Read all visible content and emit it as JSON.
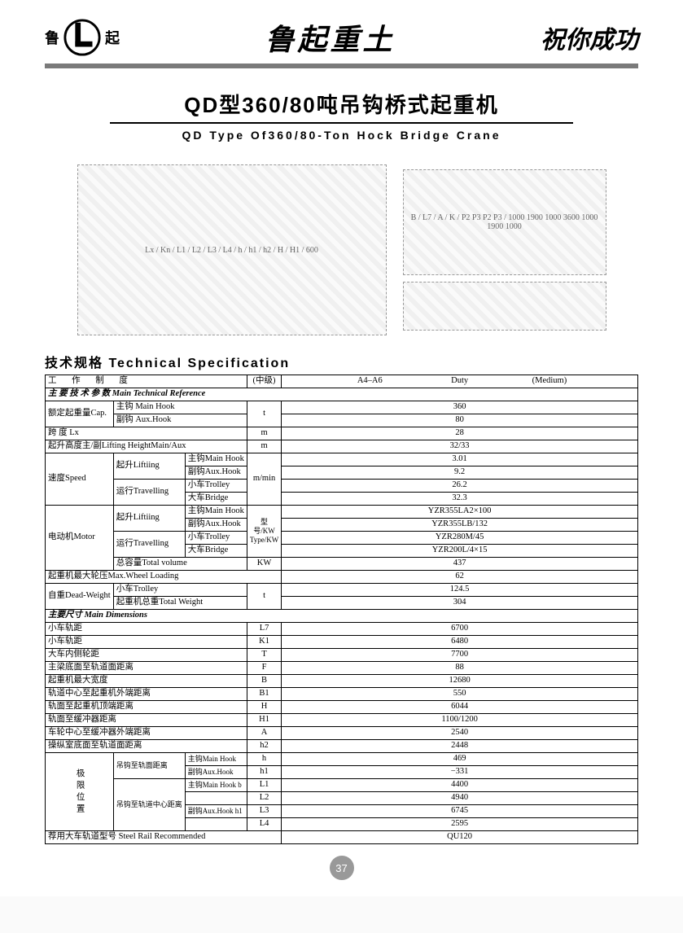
{
  "header": {
    "logo_left_char": "鲁",
    "logo_right_char": "起",
    "brand": "鲁起重土",
    "wish": "祝你成功"
  },
  "title": {
    "cn": "QD型360/80吨吊钩桥式起重机",
    "en": "QD Type Of360/80-Ton Hock Bridge Crane"
  },
  "section_heading": "技术规格  Technical  Specification",
  "diagram_labels": {
    "left": "Lx / Kn / L1 / L2 / L3 / L4 / h / h1 / h2 / H / H1 / 600",
    "right": "B / L7 / A / K / P2 P3 P2 P3 / 1000 1900 1000 3600 1000 1900 1000"
  },
  "table": {
    "duty": {
      "label_cn": "工  作  制  度",
      "label_mid": "(中级)",
      "code": "A4–A6",
      "label_en": "Duty",
      "value": "(Medium)"
    },
    "sub1": "主 要 技 术 参 数   Main   Technical   Reference",
    "cap": {
      "label": "额定起重量Cap.",
      "main_label": "主钩 Main Hook",
      "aux_label": "副钩 Aux.Hook",
      "unit": "t",
      "main_val": "360",
      "aux_val": "80"
    },
    "span": {
      "label": "跨  度    Lx",
      "unit": "m",
      "val": "28"
    },
    "lift_h": {
      "label": "起升高度主/副Lifting HeightMain/Aux",
      "unit": "m",
      "val": "32/33"
    },
    "speed": {
      "group_label": "速度Speed",
      "lift_label": "起升Liftiing",
      "trav_label": "运行Travelling",
      "unit": "m/min",
      "main_hook": {
        "label": "主钩Main Hook",
        "val": "3.01"
      },
      "aux_hook": {
        "label": "副钩Aux.Hook",
        "val": "9.2"
      },
      "trolley": {
        "label": "小车Trolley",
        "val": "26.2"
      },
      "bridge": {
        "label": "大车Bridge",
        "val": "32.3"
      }
    },
    "motor": {
      "group_label": "电动机Motor",
      "lift_label": "起升Liftiing",
      "trav_label": "运行Travelling",
      "unit_col": "型号/KW Type/KW",
      "main_hook": {
        "label": "主钩Main Hook",
        "val": "YZR355LA2×100"
      },
      "aux_hook": {
        "label": "副钩Aux.Hook",
        "val": "YZR355LB/132"
      },
      "trolley": {
        "label": "小车Trolley",
        "val": "YZR280M/45"
      },
      "bridge": {
        "label": "大车Bridge",
        "val": "YZR200L/4×15"
      },
      "total": {
        "label": "总容量Total volume",
        "unit": "KW",
        "val": "437"
      }
    },
    "wheel_load": {
      "label": "起重机最大轮压Max.Wheel Loading",
      "val": "62"
    },
    "weight": {
      "group_label": "自重Dead-Weight",
      "unit": "t",
      "trolley": {
        "label": "小车Trolley",
        "val": "124.5"
      },
      "total": {
        "label": "起重机总重Total Weight",
        "val": "304"
      }
    },
    "sub2": "主要尺寸   Main  Dimensions",
    "dims": [
      {
        "label": "小车轨距",
        "sym": "L7",
        "val": "6700"
      },
      {
        "label": "小车轨距",
        "sym": "K1",
        "val": "6480"
      },
      {
        "label": "大车内侧轮距",
        "sym": "T",
        "val": "7700"
      },
      {
        "label": "主梁底面至轨道面距离",
        "sym": "F",
        "val": "88"
      },
      {
        "label": "起重机最大宽度",
        "sym": "B",
        "val": "12680"
      },
      {
        "label": "轨道中心至起重机外端距离",
        "sym": "B1",
        "val": "550"
      },
      {
        "label": "轨面至起重机顶端距离",
        "sym": "H",
        "val": "6044"
      },
      {
        "label": "轨面至缓冲器距离",
        "sym": "H1",
        "val": "1100/1200"
      },
      {
        "label": "车轮中心至缓冲器外端距离",
        "sym": "A",
        "val": "2540"
      },
      {
        "label": "操纵室底面至轨道面距离",
        "sym": "h2",
        "val": "2448"
      }
    ],
    "limits": {
      "group_label": "极限位置",
      "rows": [
        {
          "sub_a": "吊钩至轨面距离",
          "sub_b": "主钩Main Hook",
          "sym": "h",
          "val": "469"
        },
        {
          "sub_a": "",
          "sub_b": "副钩Aux.Hook",
          "sym": "h1",
          "val": "−331"
        },
        {
          "sub_a": "吊钩至轨道中心距离",
          "sub_b": "主钩Main Hook  b",
          "sym": "L1",
          "val": "4400"
        },
        {
          "sub_a": "",
          "sub_b": "",
          "sym": "L2",
          "val": "4940"
        },
        {
          "sub_a": "",
          "sub_b": "副钩Aux.Hook h1",
          "sym": "L3",
          "val": "6745"
        },
        {
          "sub_a": "",
          "sub_b": "",
          "sym": "L4",
          "val": "2595"
        }
      ]
    },
    "rail": {
      "label": "荐用大车轨道型号  Steel Rail Recommended",
      "val": "QU120"
    }
  },
  "page_number": "37"
}
